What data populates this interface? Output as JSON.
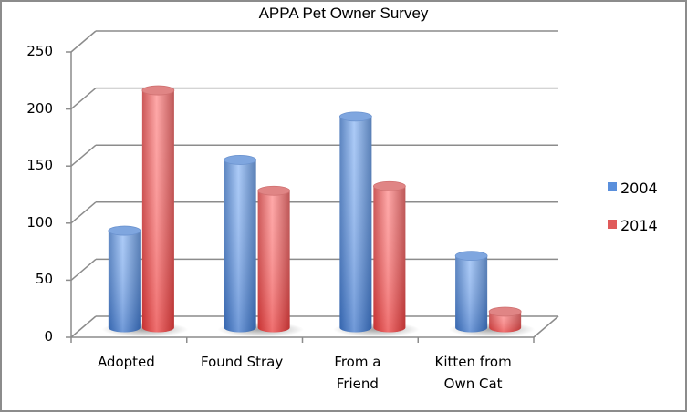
{
  "chart_data": {
    "type": "bar",
    "style": "3d-cylinder-clustered",
    "title": "APPA Pet Owner Survey",
    "xlabel": "",
    "ylabel": "",
    "categories": [
      "Adopted",
      "Found Stray",
      "From a Friend",
      "Kitten from Own Cat"
    ],
    "series": [
      {
        "name": "2004",
        "color": "#4f81bd",
        "values": [
          85,
          147,
          185,
          63
        ]
      },
      {
        "name": "2014",
        "color": "#c0504d",
        "values": [
          208,
          120,
          124,
          14
        ]
      }
    ],
    "ylim": [
      0,
      250
    ],
    "yticks": [
      0,
      50,
      100,
      150,
      200,
      250
    ],
    "grid": true,
    "legend_position": "right"
  },
  "labels": {
    "title": "APPA Pet Owner Survey",
    "yticks": [
      "250",
      "200",
      "150",
      "100",
      "50",
      "0"
    ],
    "x_lines": [
      [
        "Adopted"
      ],
      [
        "Found Stray"
      ],
      [
        "From a",
        "Friend"
      ],
      [
        "Kitten from",
        "Own Cat"
      ]
    ],
    "legend": [
      {
        "label": "2004",
        "color": "#4f81bd"
      },
      {
        "label": "2014",
        "color": "#c0504d"
      }
    ]
  }
}
